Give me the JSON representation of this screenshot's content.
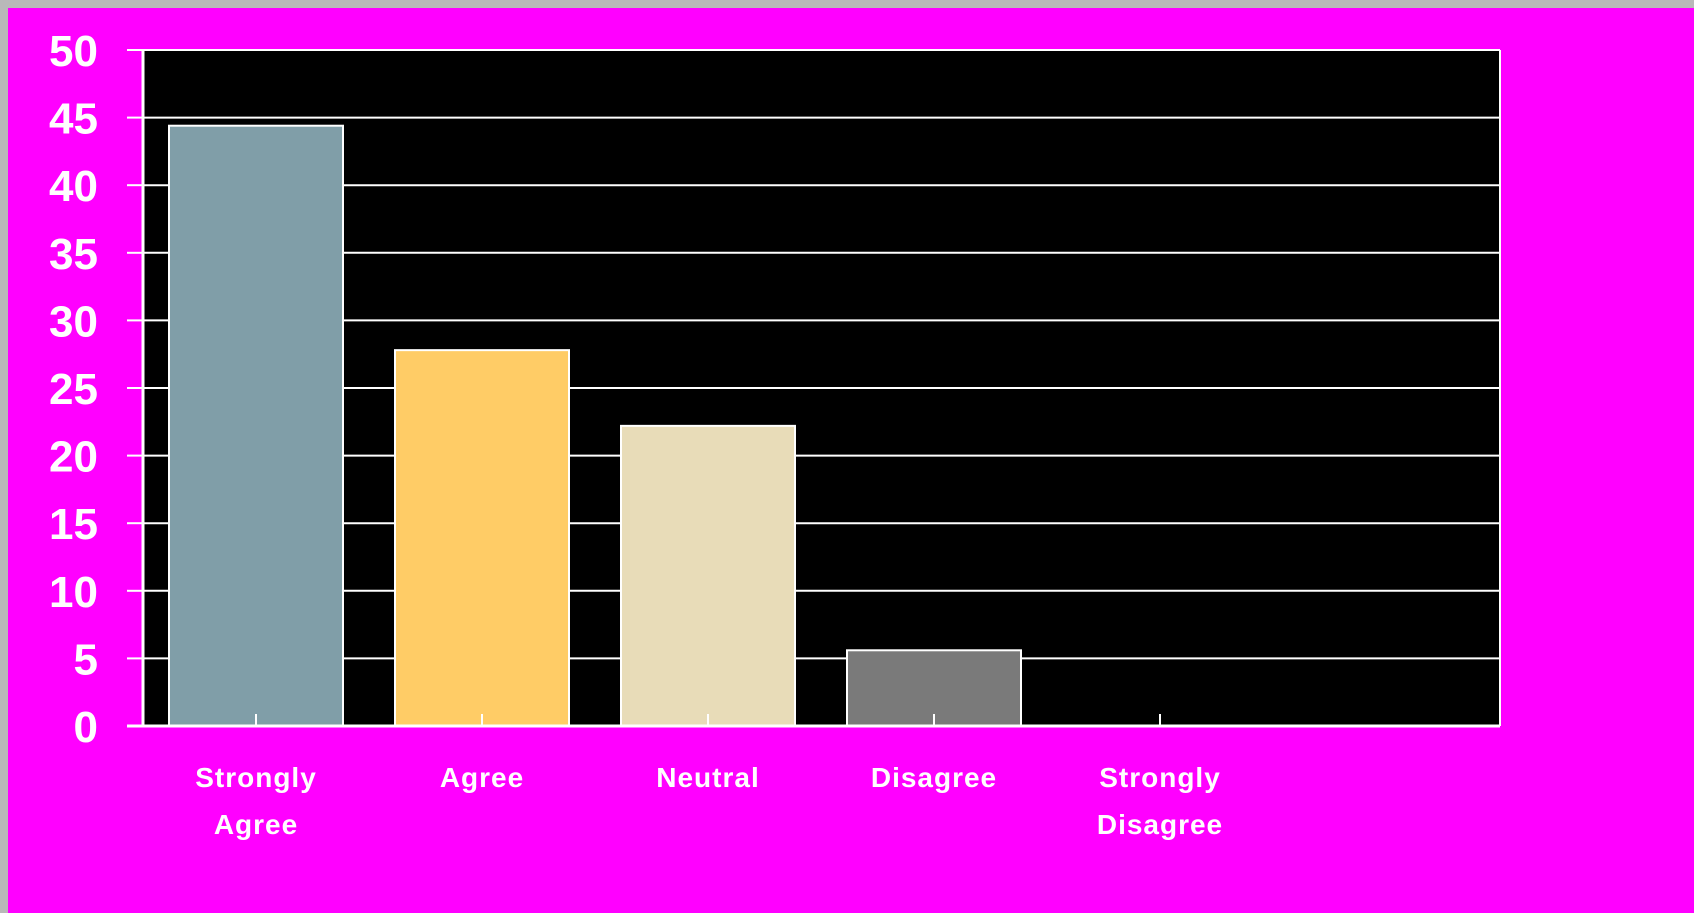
{
  "chart_data": {
    "type": "bar",
    "title": "",
    "xlabel": "",
    "ylabel": "",
    "categories": [
      [
        "Strongly",
        "Agree"
      ],
      [
        "Agree"
      ],
      [
        "Neutral"
      ],
      [
        "Disagree"
      ],
      [
        "Strongly",
        "Disagree"
      ]
    ],
    "values": [
      44.4,
      27.8,
      22.2,
      5.6,
      0
    ],
    "ylim": [
      0,
      50
    ],
    "yticks": [
      "0",
      "5",
      "10",
      "15",
      "20",
      "25",
      "30",
      "35",
      "40",
      "45",
      "50"
    ],
    "grid": true,
    "legend": "none",
    "colors": {
      "background": "#ff00ff",
      "plot_area": "#000000",
      "gridline": "#ffffff",
      "bar_outline": "#ffffff",
      "bars": [
        "#809ea8",
        "#ffcc66",
        "#e8dcb8",
        "#7a7a7a",
        "#7a7a7a"
      ]
    }
  }
}
